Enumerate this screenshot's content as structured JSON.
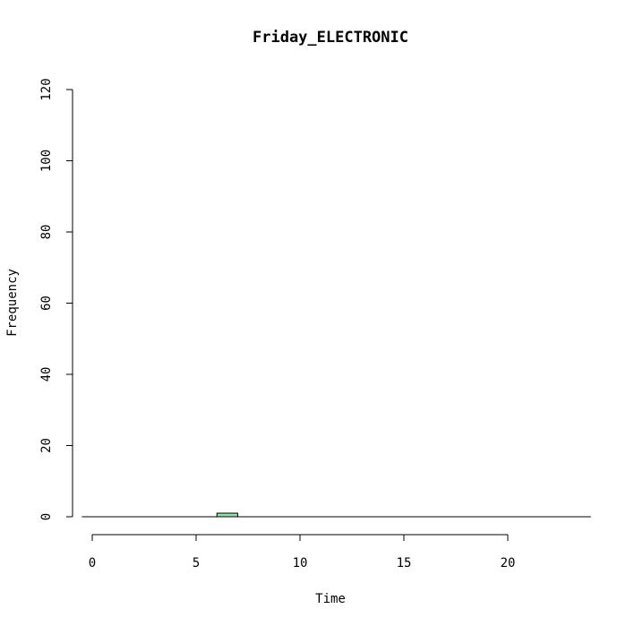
{
  "chart_data": {
    "type": "bar",
    "title": "Friday_ELECTRONIC",
    "xlabel": "Time",
    "ylabel": "Frequency",
    "xlim": [
      -0.5,
      24
    ],
    "ylim": [
      0,
      120
    ],
    "x_ticks": [
      "0",
      "5",
      "10",
      "15",
      "20"
    ],
    "y_ticks": [
      "0",
      "20",
      "40",
      "60",
      "80",
      "100",
      "120"
    ],
    "bar_width": 1,
    "bar_color": "#8fe3a8",
    "categories": [
      0,
      1,
      2,
      3,
      4,
      5,
      6,
      7,
      8,
      9,
      10,
      11,
      12,
      13,
      14,
      15,
      16,
      17,
      18,
      19,
      20,
      21,
      22,
      23
    ],
    "values": [
      0,
      0,
      0,
      0,
      0,
      0,
      1,
      0,
      0,
      0,
      0,
      0,
      0,
      0,
      0,
      0,
      0,
      0,
      0,
      0,
      0,
      0,
      0,
      0
    ],
    "grid": false,
    "legend": "none"
  }
}
